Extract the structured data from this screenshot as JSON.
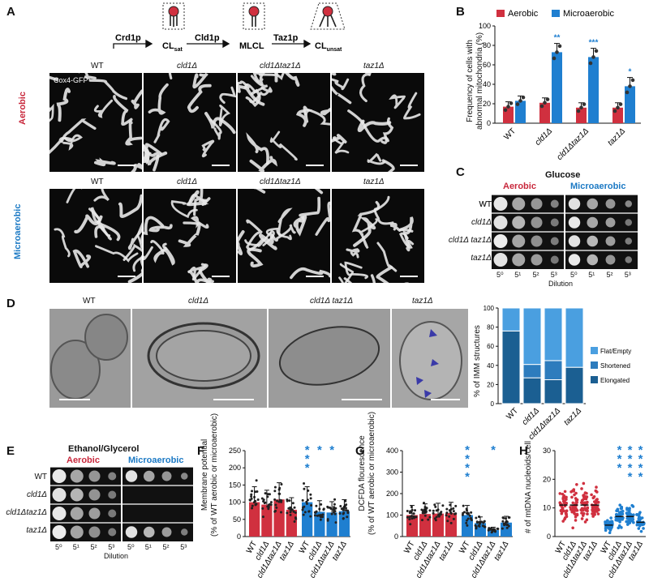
{
  "panels": {
    "A": "A",
    "B": "B",
    "C": "C",
    "D": "D",
    "E": "E",
    "F": "F",
    "G": "G",
    "H": "H"
  },
  "pathway": {
    "steps": [
      {
        "enzyme": "Crd1p",
        "product": "CL",
        "product_sub": "sat"
      },
      {
        "enzyme": "Cld1p",
        "product": "MLCL",
        "product_sub": ""
      },
      {
        "enzyme": "Taz1p",
        "product": "CL",
        "product_sub": "unsat"
      }
    ]
  },
  "panelA": {
    "columns": [
      "WT",
      "cld1Δ",
      "cld1Δtaz1Δ",
      "taz1Δ"
    ],
    "rows": [
      "Aerobic",
      "Microaerobic"
    ],
    "stain": "Cox4-GFP"
  },
  "panelB": {
    "legend": [
      "Aerobic",
      "Microaerobic"
    ],
    "ylabel_line1": "Frequency of cells with",
    "ylabel_line2": "abnormal mitochondria (%)",
    "significance": [
      "**",
      "***",
      "*"
    ]
  },
  "panelC": {
    "title": "Glucose",
    "conditions": [
      "Aerobic",
      "Microaerobic"
    ],
    "strains": [
      "WT",
      "cld1Δ",
      "cld1Δ taz1Δ",
      "taz1Δ"
    ],
    "dilutions": [
      "5⁰",
      "5¹",
      "5²",
      "5³",
      "5⁰",
      "5¹",
      "5²",
      "5³"
    ],
    "xlabel": "Dilution"
  },
  "panelD": {
    "columns": [
      "WT",
      "cld1Δ",
      "cld1Δ taz1Δ",
      "taz1Δ"
    ],
    "legend": [
      "Flat/Empty",
      "Shortened",
      "Elongated"
    ],
    "ylabel": "% of IMM structures"
  },
  "panelE": {
    "title": "Ethanol/Glycerol",
    "conditions": [
      "Aerobic",
      "Microaerobic"
    ],
    "strains": [
      "WT",
      "cld1Δ",
      "cld1Δtaz1Δ",
      "taz1Δ"
    ],
    "dilutions": [
      "5⁰",
      "5¹",
      "5²",
      "5³",
      "5⁰",
      "5¹",
      "5²",
      "5³"
    ],
    "xlabel": "Dilution"
  },
  "panelF": {
    "ylabel_line1": "Membrane potential",
    "ylabel_line2": "(% of WT aerobic or microaerobic)",
    "significance": [
      "***",
      "*",
      "*"
    ]
  },
  "panelG": {
    "ylabel_line1": "DCFDA flourescence",
    "ylabel_line2": "(% of WT aerobic or microaerobic)",
    "significance": [
      "****",
      "*"
    ]
  },
  "panelH": {
    "ylabel": "# of mtDNA nucleoids/cell",
    "significance": [
      "***",
      "****",
      "****"
    ]
  },
  "chart_data": [
    {
      "id": "B",
      "type": "bar",
      "categories": [
        "WT",
        "cld1Δ",
        "cld1Δtaz1Δ",
        "taz1Δ"
      ],
      "series": [
        {
          "name": "Aerobic",
          "values": [
            17,
            21,
            16,
            16
          ],
          "color": "#d0303f"
        },
        {
          "name": "Microaerobic",
          "values": [
            23,
            73,
            68,
            38
          ],
          "color": "#1f7fd0"
        }
      ],
      "ylim": [
        0,
        100
      ],
      "yticks": [
        0,
        20,
        40,
        60,
        80,
        100
      ]
    },
    {
      "id": "D",
      "type": "bar",
      "categories": [
        "WT",
        "cld1Δ",
        "cld1Δtaz1Δ",
        "taz1Δ"
      ],
      "series": [
        {
          "name": "Elongated",
          "values": [
            76,
            27,
            25,
            38
          ]
        },
        {
          "name": "Shortened",
          "values": [
            0,
            14,
            20,
            0
          ]
        },
        {
          "name": "Flat/Empty",
          "values": [
            24,
            59,
            55,
            62
          ]
        }
      ],
      "ylim": [
        0,
        100
      ],
      "yticks": [
        0,
        20,
        40,
        60,
        80,
        100
      ]
    },
    {
      "id": "F",
      "type": "bar",
      "categories": [
        "WT",
        "cld1Δ",
        "cld1Δtaz1Δ",
        "taz1Δ",
        "WT",
        "cld1Δ",
        "cld1Δtaz1Δ",
        "taz1Δ"
      ],
      "series": [
        {
          "name": "",
          "values": [
            100,
            93,
            108,
            78,
            100,
            72,
            70,
            74
          ]
        }
      ],
      "ylim": [
        0,
        250
      ],
      "yticks": [
        0,
        50,
        100,
        150,
        200,
        250
      ]
    },
    {
      "id": "G",
      "type": "bar",
      "categories": [
        "WT",
        "cld1Δ",
        "cld1Δtaz1Δ",
        "taz1Δ",
        "WT",
        "cld1Δ",
        "cld1Δtaz1Δ",
        "taz1Δ"
      ],
      "series": [
        {
          "name": "",
          "values": [
            100,
            105,
            107,
            110,
            100,
            63,
            30,
            65
          ]
        }
      ],
      "ylim": [
        0,
        400
      ],
      "yticks": [
        0,
        100,
        200,
        300,
        400
      ]
    },
    {
      "id": "H",
      "type": "scatter",
      "categories": [
        "WT",
        "cld1Δ",
        "cld1Δtaz1Δ",
        "taz1Δ",
        "WT",
        "cld1Δ",
        "cld1Δtaz1Δ",
        "taz1Δ"
      ],
      "series": [
        {
          "name": "",
          "values": [
            11,
            11,
            11,
            11,
            4,
            7,
            7,
            5
          ]
        }
      ],
      "ylim": [
        0,
        30
      ],
      "yticks": [
        0,
        10,
        20,
        30
      ]
    }
  ],
  "colors": {
    "aerobic": "#d0303f",
    "microaerobic": "#1f7fd0"
  }
}
